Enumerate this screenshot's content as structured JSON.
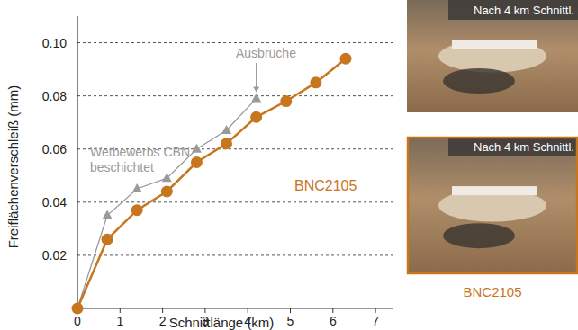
{
  "chart_data": {
    "type": "line",
    "x_label": "Schnittlänge (km)",
    "y_label": "Freiflächenverschleiß (mm)",
    "x": [
      0,
      0.7,
      1.4,
      2.1,
      2.8,
      3.5,
      4.2,
      4.9,
      5.6,
      6.3
    ],
    "series": [
      {
        "name": "Wetbewerbs CBN beschichtet",
        "color": "#9a9a9a",
        "marker": "triangle",
        "values": [
          0,
          0.035,
          0.045,
          0.049,
          0.06,
          0.067,
          0.079,
          null,
          null,
          null
        ]
      },
      {
        "name": "BNC2105",
        "color": "#c8761e",
        "marker": "circle",
        "values": [
          0,
          0.026,
          0.037,
          0.044,
          0.055,
          0.062,
          0.072,
          0.078,
          0.085,
          0.094
        ]
      }
    ],
    "annotations": [
      "Ausbrüche"
    ],
    "xlim": [
      0,
      7.4
    ],
    "xticks": [
      0,
      1,
      2,
      3,
      4,
      5,
      6,
      7
    ],
    "ylim": [
      0,
      0.11
    ],
    "yticks": [
      0.02,
      0.04,
      0.06,
      0.08,
      {
        "value": 0.1,
        "label": "0.10"
      }
    ],
    "grid": true
  },
  "photos": [
    {
      "label": "Nach 4 km Schnittl."
    },
    {
      "label": "Nach 4 km Schnittl.",
      "caption": "BNC2105"
    }
  ]
}
